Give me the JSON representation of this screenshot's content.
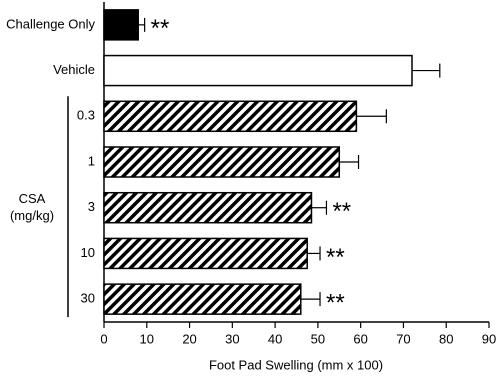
{
  "chart_data": {
    "type": "hbar",
    "categories": [
      "Challenge Only",
      "Vehicle",
      "0.3",
      "1",
      "3",
      "10",
      "30"
    ],
    "values": [
      8,
      72,
      59,
      55,
      48.5,
      47.5,
      46
    ],
    "errors": [
      1.5,
      6.5,
      7,
      4.5,
      3.5,
      3,
      4.5
    ],
    "styles": [
      "solid",
      "open",
      "hatch",
      "hatch",
      "hatch",
      "hatch",
      "hatch"
    ],
    "color": "#000000",
    "significance": [
      "**",
      null,
      null,
      null,
      "**",
      "**",
      "**"
    ],
    "group_label": {
      "lines": [
        "CSA",
        "(mg/kg)"
      ],
      "from": 2,
      "to": 6
    },
    "x_label": "Foot Pad Swelling (mm x 100)",
    "xlim": [
      0,
      90
    ],
    "xticks": [
      0,
      10,
      20,
      30,
      40,
      50,
      60,
      70,
      80,
      90
    ]
  }
}
